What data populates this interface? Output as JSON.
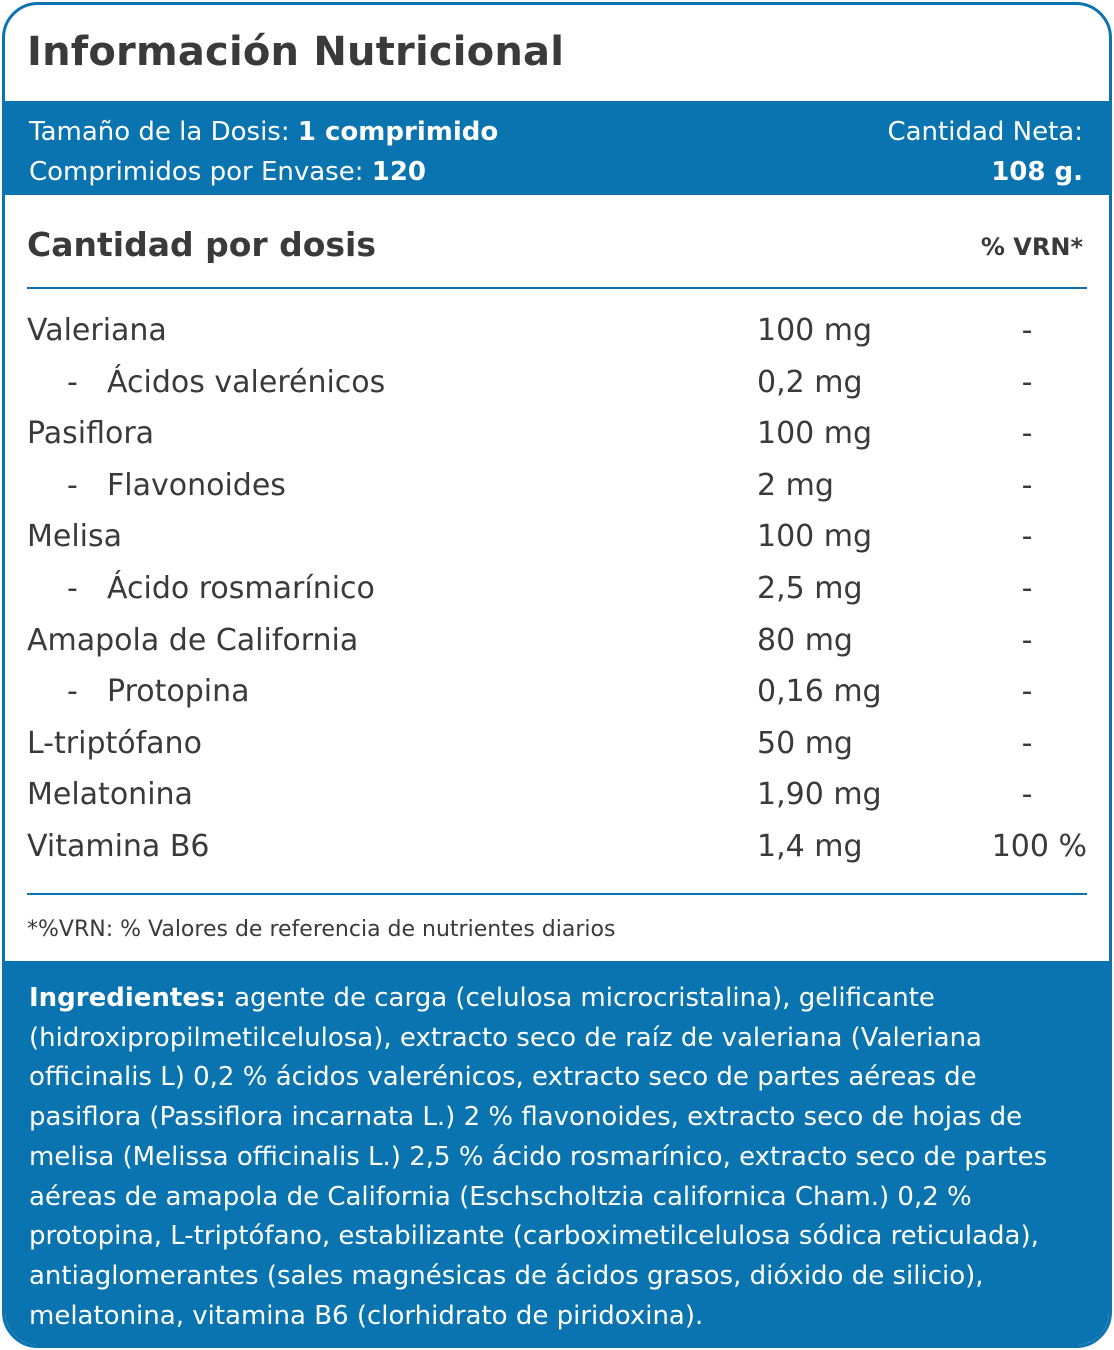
{
  "title": "Información Nutricional",
  "serving": {
    "size_label": "Tamaño de la Dosis:",
    "size_value": "1 comprimido",
    "per_container_label": "Comprimidos por Envase:",
    "per_container_value": "120",
    "net_label": "Cantidad Neta:",
    "net_value": "108 g."
  },
  "table": {
    "header": "Cantidad por dosis",
    "vrn_header": "% VRN*",
    "rows": [
      {
        "name": "Valeriana",
        "amount": "100 mg",
        "vrn": "-"
      },
      {
        "dash": "-",
        "name": "Ácidos valerénicos",
        "amount": "0,2 mg",
        "vrn": "-"
      },
      {
        "name": "Pasiflora",
        "amount": "100 mg",
        "vrn": "-"
      },
      {
        "dash": "-",
        "name": "Flavonoides",
        "amount": "2 mg",
        "vrn": "-"
      },
      {
        "name": "Melisa",
        "amount": "100 mg",
        "vrn": "-"
      },
      {
        "dash": "-",
        "name": "Ácido rosmarínico",
        "amount": "2,5 mg",
        "vrn": "-"
      },
      {
        "name": "Amapola de California",
        "amount": "80 mg",
        "vrn": "-"
      },
      {
        "dash": "-",
        "name": "Protopina",
        "amount": "0,16 mg",
        "vrn": "-"
      },
      {
        "name": "L-triptófano",
        "amount": "50 mg",
        "vrn": "-"
      },
      {
        "name": "Melatonina",
        "amount": "1,90 mg",
        "vrn": "-"
      },
      {
        "name": "Vitamina B6",
        "amount": "1,4 mg",
        "vrn": "100 %"
      }
    ],
    "footnote": "*%VRN: % Valores de referencia de nutrientes diarios"
  },
  "ingredients": {
    "label": "Ingredientes:",
    "text": " agente de carga (celulosa microcristalina), gelificante (hidroxipropilmetilcelulosa), extracto seco de raíz de valeriana (Valeriana officinalis L) 0,2 % ácidos valerénicos, extracto seco de partes aéreas de pasiflora (Passiflora incarnata L.) 2 % flavonoides, extracto seco de hojas de melisa (Melissa officinalis L.) 2,5 % ácido rosmarínico, extracto seco de partes aéreas de amapola de California (Eschscholtzia californica Cham.) 0,2 % protopina,  L-triptófano, estabilizante (carboximetilcelulosa sódica reticulada), antiaglomerantes (sales magnésicas de ácidos grasos, dióxido de silicio), melatonina, vitamina B6 (clorhidrato de piridoxina)."
  },
  "colors": {
    "accent": "#0a74b0",
    "text": "#3a3a3a",
    "band_text": "#ffffff"
  }
}
